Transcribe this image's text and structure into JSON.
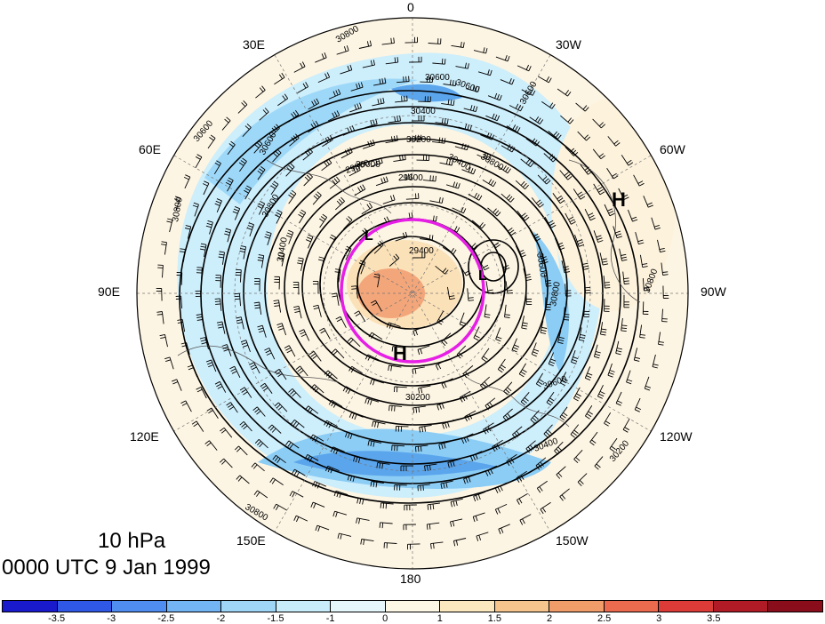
{
  "title": {
    "level": "10 hPa",
    "time": "0000 UTC 9 Jan 1999"
  },
  "longitude_labels": [
    {
      "id": "lon-0",
      "text": "0"
    },
    {
      "id": "lon-30w",
      "text": "30W"
    },
    {
      "id": "lon-60w",
      "text": "60W"
    },
    {
      "id": "lon-90w",
      "text": "90W"
    },
    {
      "id": "lon-120w",
      "text": "120W"
    },
    {
      "id": "lon-150w",
      "text": "150W"
    },
    {
      "id": "lon-180",
      "text": "180"
    },
    {
      "id": "lon-150e",
      "text": "150E"
    },
    {
      "id": "lon-120e",
      "text": "120E"
    },
    {
      "id": "lon-90e",
      "text": "90E"
    },
    {
      "id": "lon-60e",
      "text": "60E"
    },
    {
      "id": "lon-30e",
      "text": "30E"
    }
  ],
  "pressure_centers": [
    {
      "id": "high-center-atlantic",
      "text": "H"
    },
    {
      "id": "high-center-pacific",
      "text": "H"
    },
    {
      "id": "low-center-1",
      "text": "L"
    },
    {
      "id": "low-center-2",
      "text": "L"
    }
  ],
  "contour_labels": [
    "30800",
    "30600",
    "30400",
    "30200",
    "30000",
    "29800",
    "29600",
    "29400",
    "30600",
    "30400",
    "30600",
    "30800",
    "30600",
    "30800",
    "30400",
    "30600",
    "30800",
    "30800",
    "30600",
    "30800",
    "30200",
    "30400",
    "30600",
    "30800",
    "30200"
  ],
  "colorbar": {
    "colors": [
      "#1a1acd",
      "#2f58e6",
      "#4f8df0",
      "#73b4f5",
      "#9fd6f8",
      "#c9ecfb",
      "#e6f7fb",
      "#fdf7e6",
      "#fbe8bf",
      "#f6c58e",
      "#f19d6a",
      "#ec6a4e",
      "#dd3b37",
      "#b01b25",
      "#8a0d1b"
    ],
    "ticks": [
      "-3.5",
      "-3",
      "-2.5",
      "-2",
      "-1.5",
      "-1",
      "0",
      "1",
      "1.5",
      "2",
      "2.5",
      "3",
      "3.5"
    ]
  },
  "highlight_circle_color": "#e61ee6"
}
